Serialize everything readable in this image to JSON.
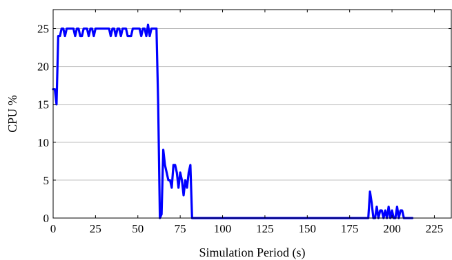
{
  "chart_data": {
    "type": "line",
    "title": "",
    "xlabel": "Simulation Period (s)",
    "ylabel": "CPU %",
    "xlim": [
      0,
      235
    ],
    "ylim": [
      0,
      27.5
    ],
    "xticks": [
      0,
      25,
      50,
      75,
      100,
      125,
      150,
      175,
      200,
      225
    ],
    "yticks": [
      0,
      5,
      10,
      15,
      20,
      25
    ],
    "grid": "horizontal",
    "legend": "none",
    "series": [
      {
        "color": "#0000ff",
        "x": [
          0,
          1,
          2,
          3,
          4,
          5,
          6,
          7,
          8,
          9,
          10,
          11,
          12,
          13,
          14,
          15,
          16,
          17,
          18,
          19,
          20,
          21,
          22,
          23,
          24,
          25,
          26,
          27,
          28,
          29,
          30,
          31,
          32,
          33,
          34,
          35,
          36,
          37,
          38,
          39,
          40,
          41,
          42,
          43,
          44,
          45,
          46,
          47,
          48,
          49,
          50,
          51,
          52,
          53,
          54,
          55,
          56,
          57,
          58,
          59,
          60,
          61,
          62,
          63,
          64,
          65,
          66,
          67,
          68,
          69,
          70,
          71,
          72,
          73,
          74,
          75,
          76,
          77,
          78,
          79,
          80,
          81,
          82,
          83,
          84,
          186,
          187,
          188,
          189,
          190,
          191,
          192,
          193,
          194,
          195,
          196,
          197,
          198,
          199,
          200,
          201,
          202,
          203,
          204,
          205,
          206,
          207,
          208,
          209,
          210,
          211,
          212
        ],
        "y": [
          17,
          17,
          15,
          24,
          24,
          25,
          25,
          24,
          25,
          25,
          25,
          25,
          25,
          24,
          25,
          25,
          24,
          24,
          25,
          25,
          25,
          24,
          25,
          25,
          24,
          25,
          25,
          25,
          25,
          25,
          25,
          25,
          25,
          25,
          24,
          25,
          25,
          24,
          25,
          25,
          24,
          25,
          25,
          25,
          24,
          24,
          24,
          25,
          25,
          25,
          25,
          25,
          24,
          25,
          25,
          24,
          25.5,
          24,
          25,
          25,
          25,
          25,
          15,
          0,
          0.5,
          9,
          7,
          6,
          5,
          5,
          4,
          7,
          7,
          6,
          4,
          6,
          5,
          3,
          5,
          4,
          6,
          7,
          0,
          0,
          0,
          0,
          3.5,
          2,
          0,
          0,
          1.5,
          0,
          1,
          1,
          0,
          1,
          0,
          1.5,
          0,
          1,
          0,
          0,
          1.5,
          0,
          1,
          1,
          0,
          0,
          0,
          0,
          0,
          0
        ]
      }
    ]
  }
}
